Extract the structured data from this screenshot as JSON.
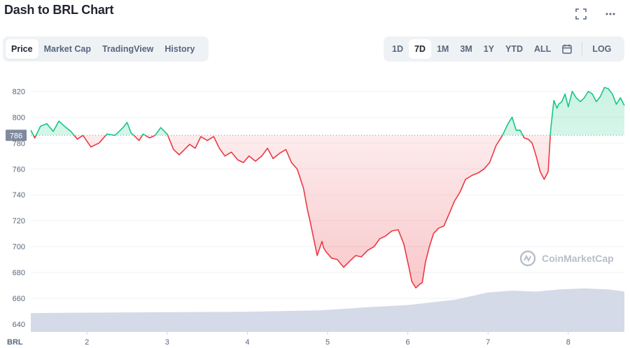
{
  "page": {
    "title": "Dash to BRL Chart"
  },
  "tabs": [
    {
      "label": "Price",
      "active": true
    },
    {
      "label": "Market Cap",
      "active": false
    },
    {
      "label": "TradingView",
      "active": false
    },
    {
      "label": "History",
      "active": false
    }
  ],
  "ranges": {
    "items": [
      {
        "label": "1D",
        "active": false
      },
      {
        "label": "7D",
        "active": true
      },
      {
        "label": "1M",
        "active": false
      },
      {
        "label": "3M",
        "active": false
      },
      {
        "label": "1Y",
        "active": false
      },
      {
        "label": "YTD",
        "active": false
      },
      {
        "label": "ALL",
        "active": false
      }
    ],
    "log_label": "LOG"
  },
  "icons": [
    "fullscreen-icon",
    "more-icon",
    "calendar-icon",
    "coinmarketcap-logo-icon"
  ],
  "watermark": "CoinMarketCap",
  "colors": {
    "up": "#16c784",
    "down": "#ea3943",
    "volume": "#cfd6e4",
    "grid": "#eff2f5"
  },
  "chart_data": {
    "type": "line",
    "title": "Dash to BRL Chart",
    "y_unit_label": "BRL",
    "yticks": [
      640,
      660,
      680,
      700,
      720,
      740,
      760,
      780,
      800,
      820
    ],
    "ylim": [
      634,
      830
    ],
    "x_tick_labels": [
      "2",
      "3",
      "4",
      "5",
      "6",
      "7",
      "8"
    ],
    "x_tick_positions": [
      2,
      3,
      4,
      5,
      6,
      7,
      8
    ],
    "xlim": [
      1.3,
      8.7
    ],
    "reference_price": 786,
    "current_price_label": "786",
    "grid": true,
    "series": [
      {
        "x": [
          1.3,
          1.35,
          1.42,
          1.5,
          1.58,
          1.65,
          1.72,
          1.8,
          1.88,
          1.95,
          2.05,
          2.15,
          2.25,
          2.35,
          2.45,
          2.5,
          2.55,
          2.6,
          2.65,
          2.7,
          2.78,
          2.85,
          2.92,
          3.0,
          3.08,
          3.15,
          3.2,
          3.28,
          3.35,
          3.42,
          3.5,
          3.58,
          3.65,
          3.72,
          3.8,
          3.88,
          3.95,
          4.02,
          4.1,
          4.18,
          4.25,
          4.32,
          4.4,
          4.48,
          4.55,
          4.62,
          4.7,
          4.75,
          4.78,
          4.82,
          4.87,
          4.93,
          4.95,
          4.98,
          5.05,
          5.12,
          5.2,
          5.28,
          5.35,
          5.42,
          5.5,
          5.58,
          5.65,
          5.72,
          5.8,
          5.88,
          5.95,
          6.02,
          6.05,
          6.1,
          6.15,
          6.18,
          6.22,
          6.27,
          6.32,
          6.38,
          6.45,
          6.52,
          6.58,
          6.65,
          6.72,
          6.8,
          6.88,
          6.95,
          7.02,
          7.1,
          7.18,
          7.25,
          7.3,
          7.35,
          7.4,
          7.45,
          7.5,
          7.55,
          7.6,
          7.65,
          7.7,
          7.75,
          7.78,
          7.82,
          7.86,
          7.88,
          7.92,
          7.96,
          8.0,
          8.05,
          8.1,
          8.15,
          8.2,
          8.25,
          8.3,
          8.35,
          8.4,
          8.45,
          8.5,
          8.55,
          8.6,
          8.65,
          8.7
        ],
        "values": [
          790,
          784,
          793,
          795,
          789,
          797,
          793,
          789,
          783,
          786,
          777,
          780,
          787,
          786,
          792,
          796,
          788,
          785,
          782,
          787,
          784,
          786,
          792,
          787,
          775,
          771,
          774,
          779,
          776,
          785,
          782,
          785,
          776,
          770,
          773,
          767,
          765,
          770,
          766,
          770,
          776,
          768,
          772,
          775,
          765,
          760,
          745,
          728,
          720,
          708,
          693,
          704,
          699,
          696,
          691,
          690,
          684,
          689,
          693,
          692,
          697,
          700,
          706,
          708,
          712,
          713,
          702,
          682,
          673,
          668,
          671,
          672,
          688,
          700,
          710,
          714,
          716,
          726,
          735,
          742,
          752,
          755,
          757,
          760,
          765,
          778,
          786,
          795,
          800,
          790,
          790,
          784,
          783,
          780,
          770,
          758,
          752,
          758,
          790,
          813,
          807,
          810,
          812,
          818,
          808,
          820,
          815,
          812,
          815,
          820,
          818,
          812,
          816,
          823,
          822,
          818,
          810,
          815,
          809
        ]
      }
    ],
    "volume": {
      "x": [
        1.3,
        2.0,
        3.0,
        4.0,
        4.9,
        5.5,
        6.0,
        6.6,
        6.8,
        7.0,
        7.3,
        7.6,
        7.9,
        8.2,
        8.5,
        8.7
      ],
      "relative_values": [
        0.42,
        0.43,
        0.44,
        0.45,
        0.48,
        0.55,
        0.6,
        0.72,
        0.8,
        0.88,
        0.92,
        0.9,
        0.95,
        0.97,
        0.95,
        0.9
      ]
    }
  }
}
